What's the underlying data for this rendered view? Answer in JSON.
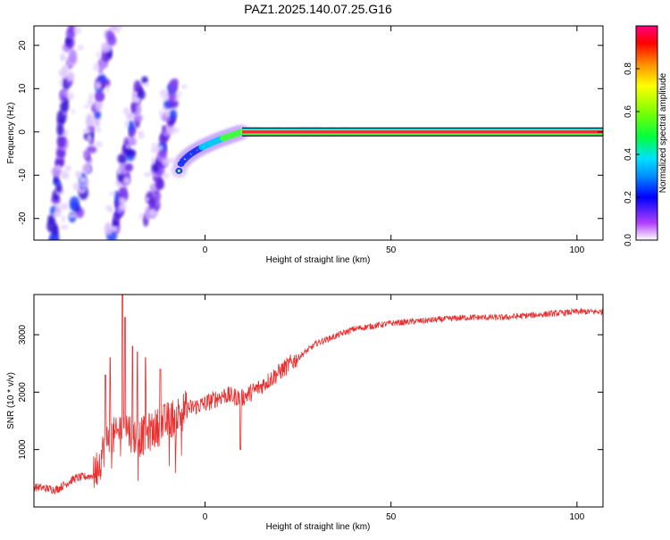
{
  "title": "PAZ1.2025.140.07.25.G16",
  "chart_data": [
    {
      "type": "heatmap",
      "xlabel": "Height of straight line (km)",
      "ylabel": "Frequency (Hz)",
      "xlim": [
        -46,
        107
      ],
      "ylim": [
        -25,
        24.5
      ],
      "xticks": [
        0,
        50,
        100
      ],
      "yticks": [
        -20,
        -10,
        0,
        10,
        20
      ],
      "colorbar": {
        "label": "Normalized spectral amplitude",
        "range": [
          0,
          1
        ],
        "ticks": [
          0.0,
          0.2,
          0.4,
          0.6,
          0.8
        ]
      },
      "features": [
        {
          "kind": "streak",
          "x0": -41,
          "y0": -25,
          "x1": -36,
          "y1": 24
        },
        {
          "kind": "streak",
          "x0": -35,
          "y0": -20,
          "x1": -25,
          "y1": 24
        },
        {
          "kind": "streak",
          "x0": -25,
          "y0": -24,
          "x1": -17,
          "y1": 12
        },
        {
          "kind": "streak",
          "x0": -15,
          "y0": -20,
          "x1": -8,
          "y1": 11
        },
        {
          "kind": "arc",
          "x0": -7,
          "y0": -9,
          "x1": 10,
          "y1": 0
        },
        {
          "kind": "line",
          "x0": 10,
          "x1": 107,
          "y": 0
        }
      ]
    },
    {
      "type": "line",
      "xlabel": "Height of straight line (km)",
      "ylabel": "SNR (10 * v/v)",
      "xlim": [
        -46,
        107
      ],
      "ylim": [
        0,
        3700
      ],
      "xticks": [
        0,
        50,
        100
      ],
      "yticks": [
        1000,
        2000,
        3000
      ],
      "color": "#e83030",
      "anchors": {
        "x": [
          -46,
          -40,
          -35,
          -30,
          -28,
          -26,
          -24,
          -22,
          -20,
          -18,
          -15,
          -10,
          -5,
          0,
          5,
          10,
          15,
          20,
          25,
          30,
          40,
          50,
          60,
          70,
          80,
          90,
          100,
          107
        ],
        "y": [
          350,
          300,
          500,
          550,
          850,
          1300,
          1200,
          1500,
          1300,
          1200,
          1300,
          1500,
          1700,
          1800,
          1950,
          1900,
          2100,
          2350,
          2600,
          2850,
          3100,
          3200,
          3250,
          3300,
          3300,
          3350,
          3400,
          3400
        ]
      },
      "spikes": [
        {
          "x": -22.2,
          "y": 3700
        },
        {
          "x": -21.5,
          "y": 3300
        },
        {
          "x": -25.5,
          "y": 2600
        },
        {
          "x": -26.8,
          "y": 2300
        },
        {
          "x": -19.5,
          "y": 2800
        },
        {
          "x": -18.2,
          "y": 2700
        },
        {
          "x": -16,
          "y": 2600
        },
        {
          "x": -12,
          "y": 2400
        },
        {
          "x": 9.5,
          "y": 1000
        }
      ]
    }
  ]
}
